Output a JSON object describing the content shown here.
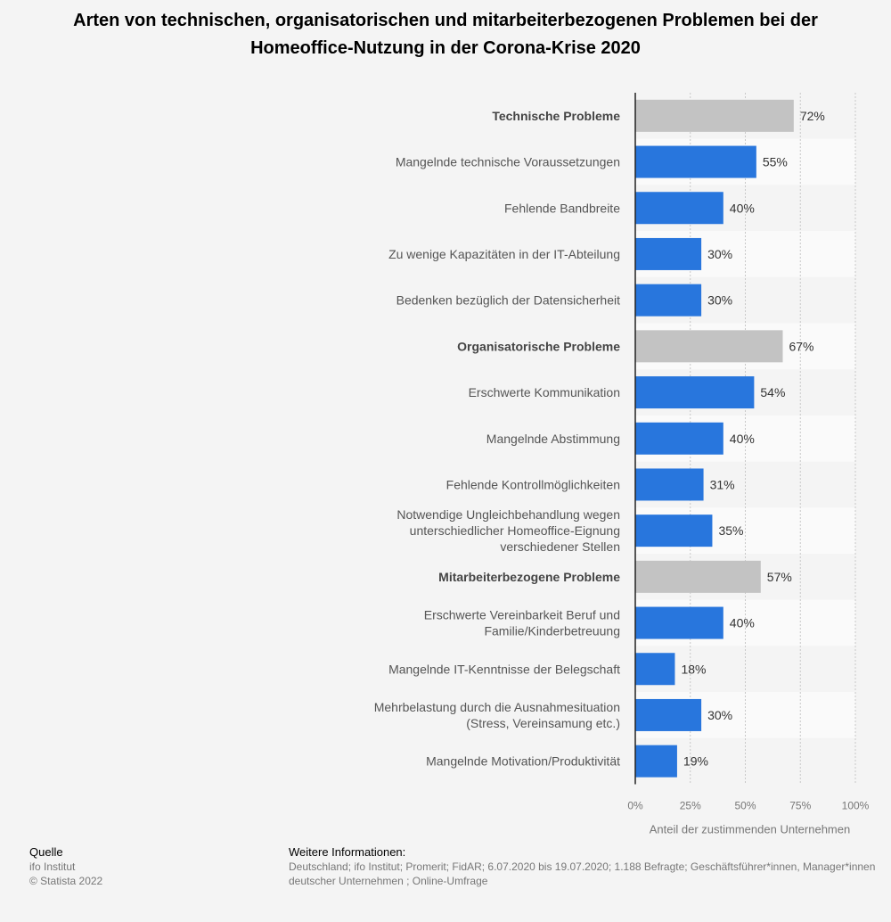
{
  "title": "Arten von technischen, organisatorischen und mitarbeiterbezogenen Problemen bei der Homeoffice-Nutzung in der Corona-Krise 2020",
  "chart_data": {
    "type": "bar",
    "orientation": "horizontal",
    "categories": [
      "Technische Probleme",
      "Mangelnde technische Voraussetzungen",
      "Fehlende Bandbreite",
      "Zu wenige Kapazitäten in der IT-Abteilung",
      "Bedenken bezüglich der Datensicherheit",
      "Organisatorische Probleme",
      "Erschwerte Kommunikation",
      "Mangelnde Abstimmung",
      "Fehlende Kontrollmöglichkeiten",
      "Notwendige Ungleichbehandlung wegen unterschiedlicher Homeoffice-Eignung verschiedener Stellen",
      "Mitarbeiterbezogene Probleme",
      "Erschwerte Vereinbarkeit Beruf und Familie/Kinderbetreuung",
      "Mangelnde IT-Kenntnisse der Belegschaft",
      "Mehrbelastung durch die Ausnahmesituation (Stress, Vereinsamung etc.)",
      "Mangelnde Motivation/Produktivität"
    ],
    "category_lines": [
      [
        "Technische Probleme"
      ],
      [
        "Mangelnde technische Voraussetzungen"
      ],
      [
        "Fehlende Bandbreite"
      ],
      [
        "Zu wenige Kapazitäten in der IT-Abteilung"
      ],
      [
        "Bedenken bezüglich der Datensicherheit"
      ],
      [
        "Organisatorische Probleme"
      ],
      [
        "Erschwerte Kommunikation"
      ],
      [
        "Mangelnde Abstimmung"
      ],
      [
        "Fehlende Kontrollmöglichkeiten"
      ],
      [
        "Notwendige Ungleichbehandlung wegen",
        "unterschiedlicher Homeoffice-Eignung",
        "verschiedener Stellen"
      ],
      [
        "Mitarbeiterbezogene Probleme"
      ],
      [
        "Erschwerte Vereinbarkeit Beruf und",
        "Familie/Kinderbetreuung"
      ],
      [
        "Mangelnde IT-Kenntnisse der Belegschaft"
      ],
      [
        "Mehrbelastung durch die Ausnahmesituation",
        "(Stress, Vereinsamung etc.)"
      ],
      [
        "Mangelnde Motivation/Produktivität"
      ]
    ],
    "values": [
      72,
      55,
      40,
      30,
      30,
      67,
      54,
      40,
      31,
      35,
      57,
      40,
      18,
      30,
      19
    ],
    "value_labels": [
      "72%",
      "55%",
      "40%",
      "30%",
      "30%",
      "67%",
      "54%",
      "40%",
      "31%",
      "35%",
      "57%",
      "40%",
      "18%",
      "30%",
      "19%"
    ],
    "is_group_header": [
      true,
      false,
      false,
      false,
      false,
      true,
      false,
      false,
      false,
      false,
      true,
      false,
      false,
      false,
      false
    ],
    "xlim": [
      0,
      100
    ],
    "xticks": [
      0,
      25,
      50,
      75,
      100
    ],
    "xtick_labels": [
      "0%",
      "25%",
      "50%",
      "75%",
      "100%"
    ],
    "xlabel": "Anteil der zustimmenden Unternehmen",
    "ylabel": "",
    "colors": {
      "bar": "#2876dd",
      "group_bar": "#c3c3c3"
    },
    "grid": true
  },
  "footer": {
    "source_heading": "Quelle",
    "source_lines": [
      "ifo Institut",
      "© Statista 2022"
    ],
    "info_heading": "Weitere Informationen:",
    "info_lines": [
      "Deutschland; ifo Institut; Promerit; FidAR; 6.07.2020 bis 19.07.2020; 1.188 Befragte; Geschäftsführer*innen, Manager*innen",
      "deutscher Unternehmen ; Online-Umfrage"
    ]
  }
}
